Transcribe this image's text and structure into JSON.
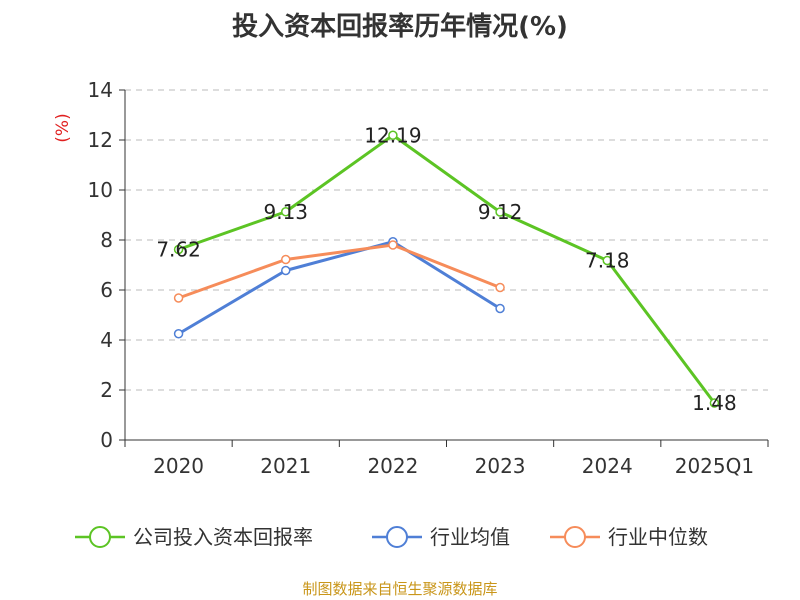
{
  "title": "投入资本回报率历年情况(%)",
  "source": "制图数据来自恒生聚源数据库",
  "colors": {
    "company": "#5cc424",
    "industry_avg": "#4f7fd6",
    "industry_median": "#f68c5a",
    "axis": "#333333",
    "grid": "#bbbbbb",
    "ylabel": "#e02020"
  },
  "chart_data": {
    "type": "line",
    "ylabel": "(%)",
    "ylim": [
      0,
      14
    ],
    "yticks": [
      "0",
      "2",
      "4",
      "6",
      "8",
      "10",
      "12",
      "14"
    ],
    "categories": [
      "2020",
      "2021",
      "2022",
      "2023",
      "2024",
      "2025Q1"
    ],
    "grid": true,
    "legend_position": "bottom",
    "series": [
      {
        "key": "company",
        "name": "公司投入资本回报率",
        "values": [
          7.62,
          9.13,
          12.19,
          9.12,
          7.18,
          1.48
        ],
        "labels": [
          "7.62",
          "9.13",
          "12.19",
          "9.12",
          "7.18",
          "1.48"
        ]
      },
      {
        "key": "industry_avg",
        "name": "行业均值",
        "values": [
          4.25,
          6.78,
          7.93,
          5.26,
          null,
          null
        ]
      },
      {
        "key": "industry_median",
        "name": "行业中位数",
        "values": [
          5.68,
          7.22,
          7.8,
          6.1,
          null,
          null
        ]
      }
    ]
  }
}
